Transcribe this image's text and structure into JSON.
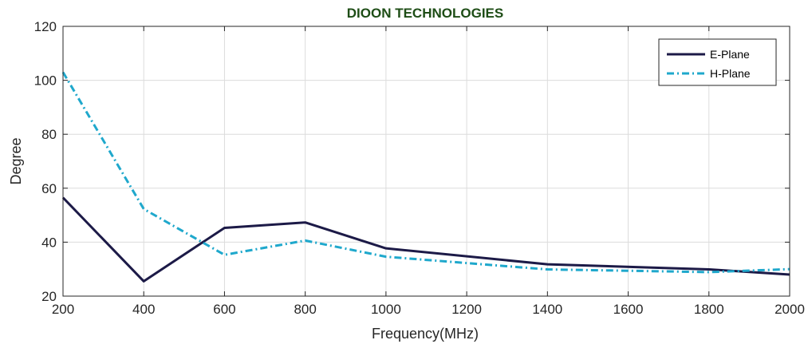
{
  "chart_data": {
    "type": "line",
    "title": "DIOON TECHNOLOGIES",
    "xlabel": "Frequency(MHz)",
    "ylabel": "Degree",
    "xlim": [
      200,
      2000
    ],
    "ylim": [
      20,
      120
    ],
    "xticks": [
      200,
      400,
      600,
      800,
      1000,
      1200,
      1400,
      1600,
      1800,
      2000
    ],
    "yticks": [
      20,
      40,
      60,
      80,
      100,
      120
    ],
    "grid": true,
    "legend_position": "top-right",
    "series": [
      {
        "name": "E-Plane",
        "color": "#1c1a47",
        "style": "solid",
        "x": [
          200,
          400,
          600,
          800,
          1000,
          1400,
          1800,
          2000
        ],
        "y": [
          56.5,
          25.5,
          45.3,
          47.3,
          37.7,
          31.8,
          29.9,
          28.0
        ]
      },
      {
        "name": "H-Plane",
        "color": "#1fa8cc",
        "style": "dashdot",
        "x": [
          200,
          400,
          600,
          800,
          1000,
          1400,
          1800,
          2000
        ],
        "y": [
          103.0,
          52.3,
          35.3,
          40.6,
          34.6,
          29.9,
          28.9,
          30.0
        ]
      }
    ]
  }
}
